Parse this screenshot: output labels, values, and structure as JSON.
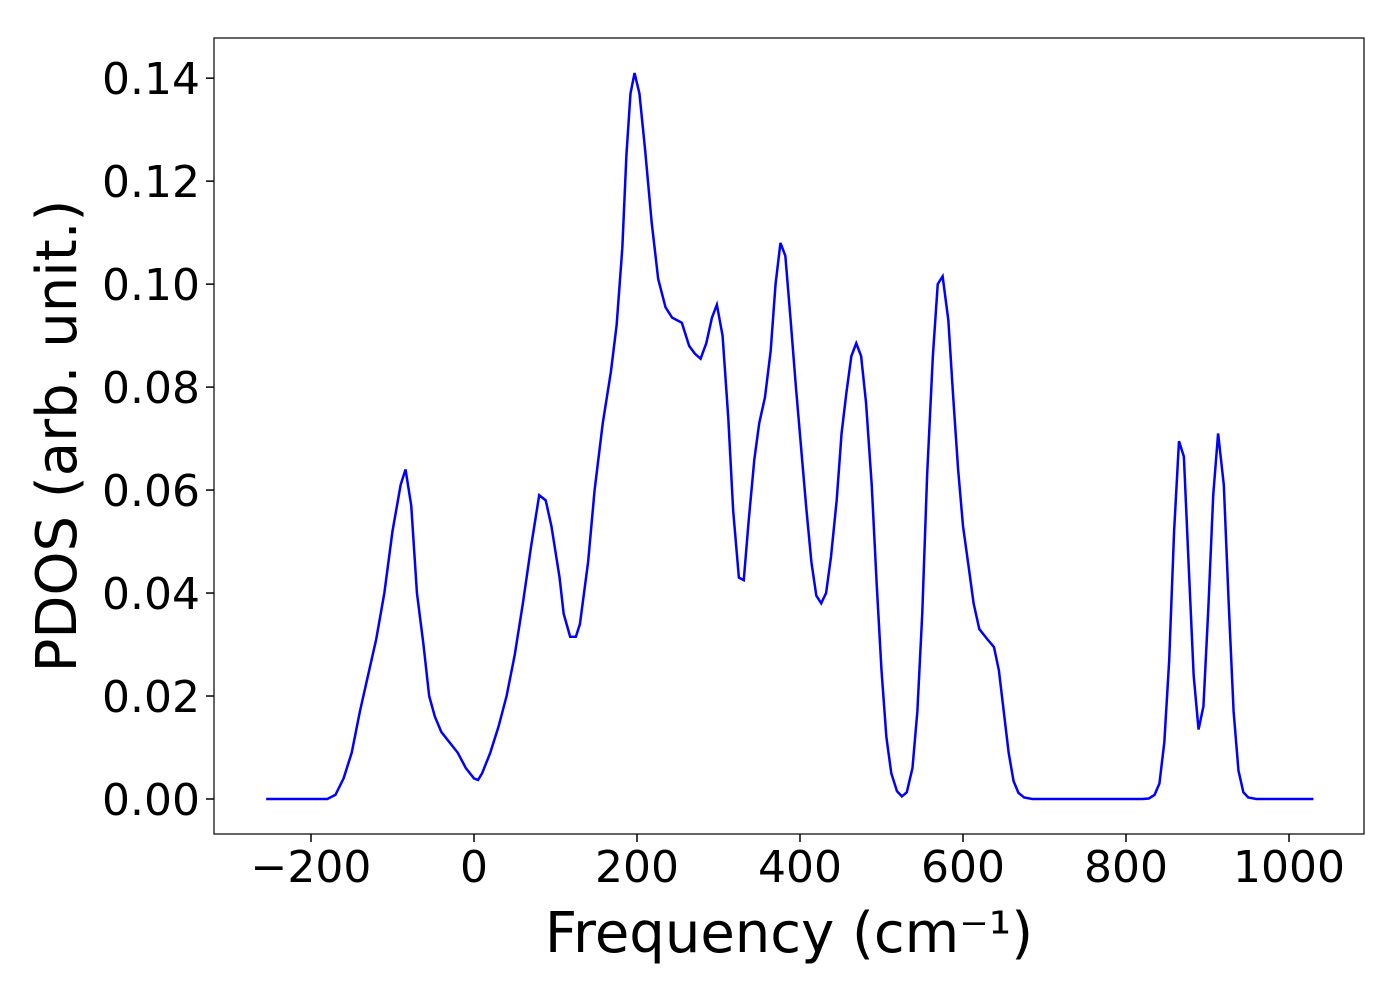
{
  "chart_data": {
    "type": "line",
    "xlabel": "Frequency (cm⁻¹)",
    "ylabel": "PDOS (arb. unit.)",
    "xlim": [
      -319,
      1092
    ],
    "ylim": [
      -0.0068,
      0.1478
    ],
    "xticks": [
      {
        "value": -200,
        "label": "−200"
      },
      0,
      200,
      400,
      600,
      800,
      1000
    ],
    "yticks": [
      {
        "value": 0,
        "label": "0.00"
      },
      {
        "value": 0.02,
        "label": "0.02"
      },
      {
        "value": 0.04,
        "label": "0.04"
      },
      {
        "value": 0.06,
        "label": "0.06"
      },
      {
        "value": 0.08,
        "label": "0.08"
      },
      {
        "value": 0.1,
        "label": "0.10"
      },
      {
        "value": 0.12,
        "label": "0.12"
      },
      {
        "value": 0.14,
        "label": "0.14"
      }
    ],
    "grid": false,
    "series": [
      {
        "color": "#0000ff",
        "x": [
          -255,
          -180,
          -170,
          -160,
          -150,
          -140,
          -130,
          -120,
          -110,
          -100,
          -90,
          -84,
          -77,
          -70,
          -62,
          -55,
          -48,
          -40,
          -30,
          -20,
          -10,
          0,
          5,
          10,
          20,
          30,
          40,
          50,
          60,
          70,
          80,
          88,
          95,
          105,
          110,
          118,
          125,
          130,
          140,
          148,
          158,
          168,
          175,
          182,
          187,
          192,
          197,
          203,
          210,
          218,
          226,
          235,
          243,
          255,
          264,
          271,
          278,
          285,
          292,
          298,
          305,
          312,
          318,
          325,
          331,
          337,
          344,
          350,
          357,
          364,
          370,
          376,
          382,
          388,
          395,
          402,
          408,
          414,
          420,
          426,
          432,
          438,
          445,
          451,
          457,
          463,
          469,
          475,
          481,
          488,
          494,
          500,
          506,
          512,
          519,
          525,
          531,
          538,
          544,
          550,
          556,
          563,
          569,
          575,
          582,
          588,
          594,
          600,
          607,
          613,
          620,
          630,
          638,
          644,
          650,
          656,
          662,
          668,
          675,
          685,
          700,
          820,
          828,
          835,
          841,
          847,
          853,
          859,
          865,
          871,
          877,
          883,
          889,
          895,
          901,
          907,
          913,
          920,
          926,
          932,
          938,
          944,
          950,
          960,
          1030
        ],
        "values": [
          0,
          0,
          0.0008,
          0.004,
          0.009,
          0.017,
          0.024,
          0.031,
          0.04,
          0.052,
          0.061,
          0.064,
          0.057,
          0.04,
          0.03,
          0.02,
          0.016,
          0.013,
          0.011,
          0.009,
          0.006,
          0.004,
          0.0037,
          0.005,
          0.009,
          0.014,
          0.02,
          0.028,
          0.038,
          0.049,
          0.059,
          0.058,
          0.053,
          0.043,
          0.036,
          0.0315,
          0.0315,
          0.034,
          0.046,
          0.06,
          0.073,
          0.083,
          0.092,
          0.107,
          0.125,
          0.137,
          0.141,
          0.137,
          0.126,
          0.112,
          0.101,
          0.0955,
          0.0935,
          0.0925,
          0.088,
          0.0865,
          0.0855,
          0.0885,
          0.0935,
          0.096,
          0.09,
          0.074,
          0.056,
          0.043,
          0.0425,
          0.054,
          0.066,
          0.073,
          0.078,
          0.087,
          0.1,
          0.108,
          0.1055,
          0.094,
          0.08,
          0.067,
          0.056,
          0.046,
          0.0395,
          0.038,
          0.04,
          0.047,
          0.058,
          0.071,
          0.079,
          0.086,
          0.0885,
          0.086,
          0.077,
          0.061,
          0.042,
          0.025,
          0.012,
          0.005,
          0.0015,
          0.0005,
          0.0013,
          0.006,
          0.017,
          0.036,
          0.063,
          0.086,
          0.1,
          0.1015,
          0.093,
          0.078,
          0.064,
          0.053,
          0.045,
          0.038,
          0.033,
          0.031,
          0.0295,
          0.025,
          0.017,
          0.009,
          0.0035,
          0.0012,
          0.0003,
          0,
          0,
          0,
          0.0001,
          0.0008,
          0.003,
          0.011,
          0.027,
          0.052,
          0.0695,
          0.0665,
          0.045,
          0.024,
          0.0135,
          0.018,
          0.037,
          0.059,
          0.071,
          0.061,
          0.038,
          0.017,
          0.0055,
          0.0013,
          0.0003,
          0,
          0
        ]
      }
    ]
  }
}
